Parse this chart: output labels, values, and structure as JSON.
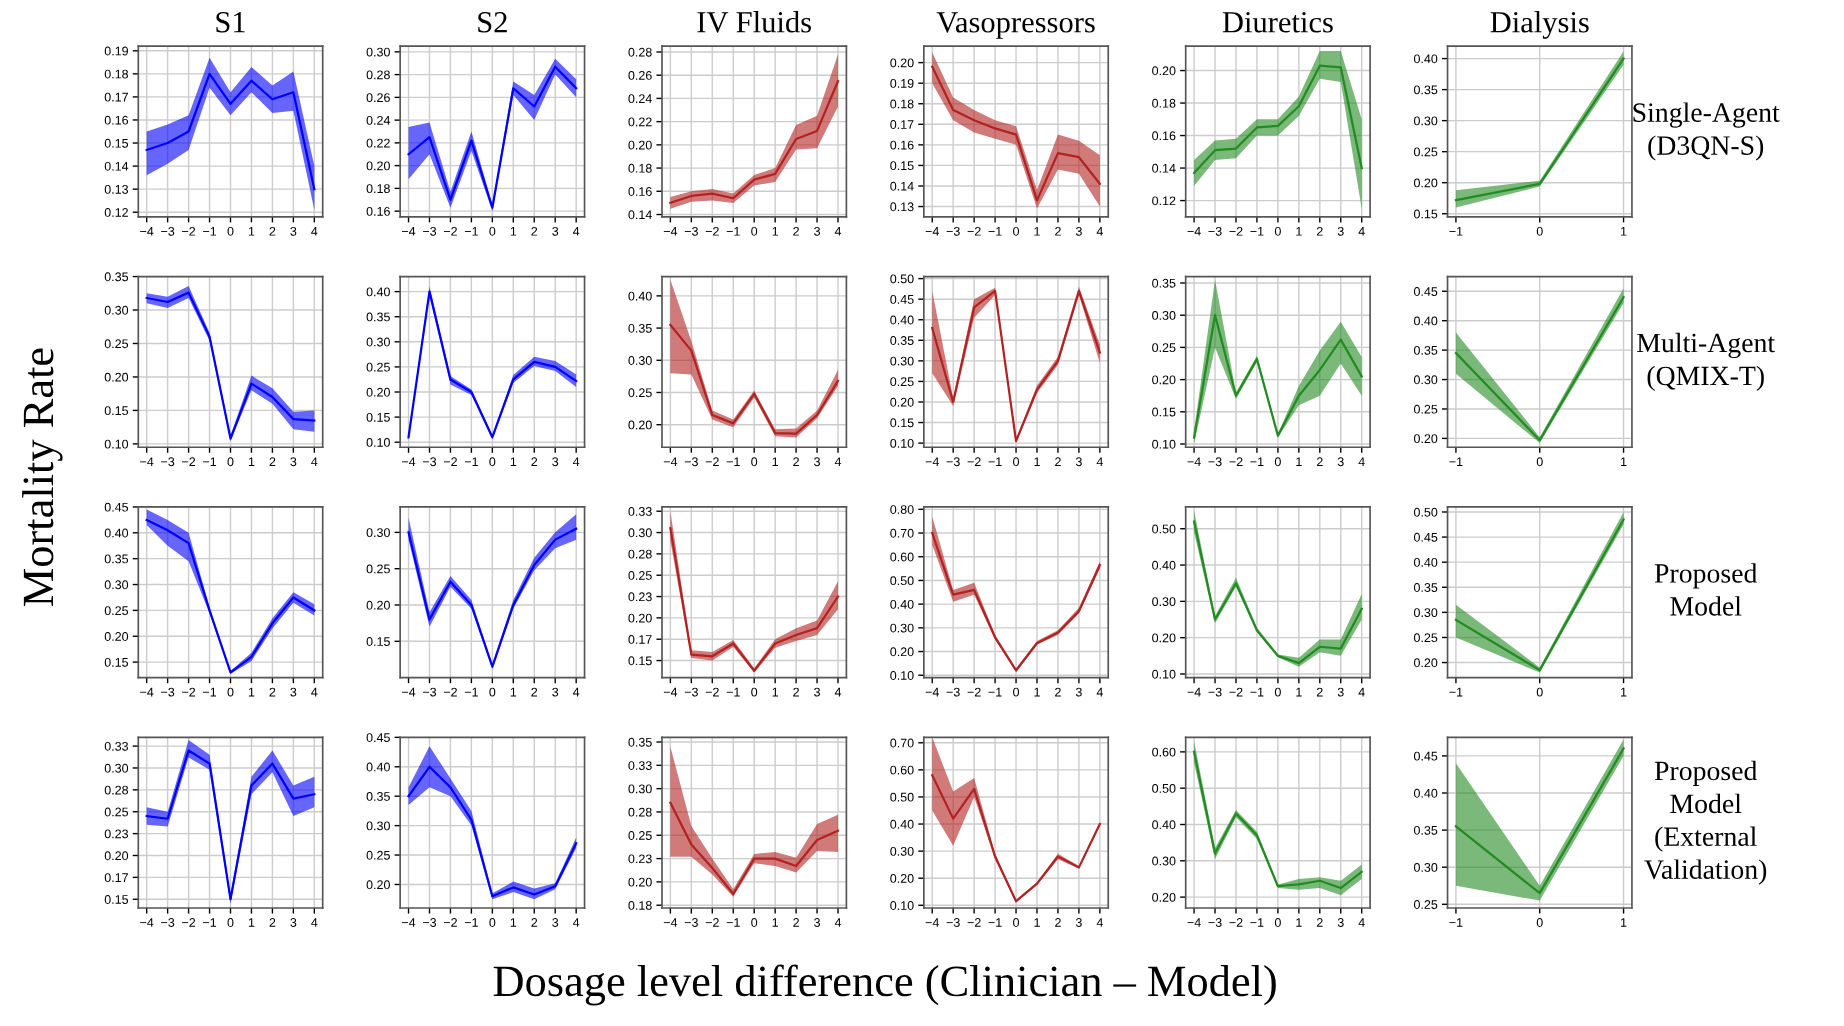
{
  "chart_data": [
    {
      "type": "line",
      "title": "S1",
      "ylabel": "Mortality Rate",
      "x": [
        -4,
        -3,
        -2,
        -1,
        0,
        1,
        2,
        3,
        4
      ],
      "xlim": [
        -4.4,
        4.4
      ],
      "xticks": [
        -4,
        -3,
        -2,
        -1,
        0,
        1,
        2,
        3,
        4
      ],
      "ylim": [
        0.118,
        0.192
      ],
      "yticks": [
        0.12,
        0.13,
        0.14,
        0.15,
        0.16,
        0.17,
        0.18,
        0.19
      ],
      "grid": true,
      "series": [
        {
          "color": "#0000ff",
          "values": [
            0.147,
            0.15,
            0.155,
            0.18,
            0.167,
            0.177,
            0.169,
            0.172,
            0.13
          ],
          "lower": [
            0.136,
            0.141,
            0.147,
            0.174,
            0.162,
            0.172,
            0.163,
            0.164,
            0.121
          ],
          "upper": [
            0.155,
            0.158,
            0.162,
            0.187,
            0.172,
            0.183,
            0.175,
            0.181,
            0.14
          ]
        }
      ]
    },
    {
      "type": "line",
      "title": "S2",
      "x": [
        -4,
        -3,
        -2,
        -1,
        0,
        1,
        2,
        3,
        4
      ],
      "xlim": [
        -4.4,
        4.4
      ],
      "xticks": [
        -4,
        -3,
        -2,
        -1,
        0,
        1,
        2,
        3,
        4
      ],
      "ylim": [
        0.155,
        0.305
      ],
      "yticks": [
        0.16,
        0.18,
        {
          "value": 0.2,
          "label": "0.20"
        },
        0.22,
        0.24,
        0.26,
        0.28,
        {
          "value": 0.3,
          "label": "0.30"
        }
      ],
      "grid": true,
      "series": [
        {
          "color": "#0000ff",
          "values": [
            0.21,
            0.225,
            0.17,
            0.222,
            0.163,
            0.268,
            0.252,
            0.287,
            0.268
          ],
          "lower": [
            0.188,
            0.21,
            0.163,
            0.213,
            0.16,
            0.262,
            0.24,
            0.28,
            0.26
          ],
          "upper": [
            0.234,
            0.238,
            0.177,
            0.23,
            0.166,
            0.274,
            0.262,
            0.294,
            0.276
          ]
        }
      ]
    },
    {
      "type": "line",
      "title": "IV Fluids",
      "x": [
        -4,
        -3,
        -2,
        -1,
        0,
        1,
        2,
        3,
        4
      ],
      "xlim": [
        -4.4,
        4.4
      ],
      "xticks": [
        -4,
        -3,
        -2,
        -1,
        0,
        1,
        2,
        3,
        4
      ],
      "ylim": [
        0.138,
        0.285
      ],
      "yticks": [
        0.14,
        0.16,
        0.18,
        {
          "value": 0.2,
          "label": "0.20"
        },
        0.22,
        0.24,
        0.26,
        0.28
      ],
      "grid": true,
      "series": [
        {
          "color": "#b22222",
          "values": [
            0.15,
            0.156,
            0.158,
            0.154,
            0.17,
            0.175,
            0.205,
            0.212,
            0.255
          ],
          "lower": [
            0.145,
            0.151,
            0.152,
            0.15,
            0.165,
            0.168,
            0.196,
            0.197,
            0.233
          ],
          "upper": [
            0.155,
            0.16,
            0.162,
            0.158,
            0.174,
            0.18,
            0.217,
            0.225,
            0.278
          ]
        }
      ]
    },
    {
      "type": "line",
      "title": "Vasopressors",
      "x": [
        -4,
        -3,
        -2,
        -1,
        0,
        1,
        2,
        3,
        4
      ],
      "xlim": [
        -4.4,
        4.4
      ],
      "xticks": [
        -4,
        -3,
        -2,
        -1,
        0,
        1,
        2,
        3,
        4
      ],
      "ylim": [
        0.125,
        0.208
      ],
      "yticks": [
        0.13,
        0.14,
        0.15,
        0.16,
        0.17,
        0.18,
        0.19,
        {
          "value": 0.2,
          "label": "0.20"
        }
      ],
      "grid": true,
      "series": [
        {
          "color": "#b22222",
          "values": [
            0.198,
            0.177,
            0.172,
            0.168,
            0.165,
            0.133,
            0.156,
            0.154,
            0.141
          ],
          "lower": [
            0.19,
            0.172,
            0.166,
            0.163,
            0.16,
            0.129,
            0.148,
            0.146,
            0.13
          ],
          "upper": [
            0.205,
            0.183,
            0.177,
            0.172,
            0.169,
            0.138,
            0.165,
            0.162,
            0.155
          ]
        }
      ]
    },
    {
      "type": "line",
      "title": "Diuretics",
      "x": [
        -4,
        -3,
        -2,
        -1,
        0,
        1,
        2,
        3,
        4
      ],
      "xlim": [
        -4.4,
        4.4
      ],
      "xticks": [
        -4,
        -3,
        -2,
        -1,
        0,
        1,
        2,
        3,
        4
      ],
      "ylim": [
        0.11,
        0.215
      ],
      "yticks": [
        0.12,
        0.14,
        0.16,
        0.18,
        {
          "value": 0.2,
          "label": "0.20"
        }
      ],
      "grid": true,
      "series": [
        {
          "color": "#228b22",
          "values": [
            0.137,
            0.151,
            0.152,
            0.165,
            0.166,
            0.178,
            0.203,
            0.202,
            0.14
          ],
          "lower": [
            0.129,
            0.145,
            0.146,
            0.16,
            0.16,
            0.172,
            0.195,
            0.193,
            0.115
          ],
          "upper": [
            0.145,
            0.157,
            0.158,
            0.17,
            0.17,
            0.184,
            0.212,
            0.212,
            0.17
          ]
        }
      ]
    },
    {
      "type": "line",
      "title": "Dialysis",
      "x": [
        -1,
        0,
        1
      ],
      "xlim": [
        -1.1,
        1.1
      ],
      "xticks": [
        -1,
        0,
        1
      ],
      "ylim": [
        0.145,
        0.42
      ],
      "yticks": [
        0.15,
        {
          "value": 0.2,
          "label": "0.20"
        },
        0.25,
        {
          "value": 0.3,
          "label": "0.30"
        },
        0.35,
        {
          "value": 0.4,
          "label": "0.40"
        }
      ],
      "grid": true,
      "annotations": [
        "Single-Agent\n(D3QN-S)"
      ],
      "series": [
        {
          "color": "#228b22",
          "values": [
            0.172,
            0.198,
            0.4
          ],
          "lower": [
            0.16,
            0.194,
            0.39
          ],
          "upper": [
            0.188,
            0.203,
            0.412
          ]
        }
      ]
    },
    {
      "type": "line",
      "x": [
        -4,
        -3,
        -2,
        -1,
        0,
        1,
        2,
        3,
        4
      ],
      "xlim": [
        -4.4,
        4.4
      ],
      "xticks": [
        -4,
        -3,
        -2,
        -1,
        0,
        1,
        2,
        3,
        4
      ],
      "ylim": [
        0.095,
        0.35
      ],
      "yticks": [
        {
          "value": 0.1,
          "label": "0.10"
        },
        0.15,
        {
          "value": 0.2,
          "label": "0.20"
        },
        0.25,
        {
          "value": 0.3,
          "label": "0.30"
        },
        0.35
      ],
      "grid": true,
      "series": [
        {
          "color": "#0000ff",
          "values": [
            0.318,
            0.312,
            0.326,
            0.26,
            0.108,
            0.19,
            0.17,
            0.137,
            0.135
          ],
          "lower": [
            0.31,
            0.303,
            0.318,
            0.254,
            0.104,
            0.18,
            0.16,
            0.122,
            0.118
          ],
          "upper": [
            0.325,
            0.32,
            0.336,
            0.266,
            0.112,
            0.202,
            0.183,
            0.148,
            0.15
          ]
        }
      ]
    },
    {
      "type": "line",
      "x": [
        -4,
        -3,
        -2,
        -1,
        0,
        1,
        2,
        3,
        4
      ],
      "xlim": [
        -4.4,
        4.4
      ],
      "xticks": [
        -4,
        -3,
        -2,
        -1,
        0,
        1,
        2,
        3,
        4
      ],
      "ylim": [
        0.09,
        0.43
      ],
      "yticks": [
        {
          "value": 0.1,
          "label": "0.10"
        },
        0.15,
        {
          "value": 0.2,
          "label": "0.20"
        },
        0.25,
        {
          "value": 0.3,
          "label": "0.30"
        },
        0.35,
        {
          "value": 0.4,
          "label": "0.40"
        }
      ],
      "grid": true,
      "series": [
        {
          "color": "#0000ff",
          "values": [
            0.11,
            0.4,
            0.225,
            0.2,
            0.11,
            0.225,
            0.26,
            0.25,
            0.222
          ],
          "lower": [
            0.105,
            0.392,
            0.215,
            0.194,
            0.106,
            0.218,
            0.252,
            0.242,
            0.21
          ],
          "upper": [
            0.116,
            0.41,
            0.232,
            0.205,
            0.114,
            0.234,
            0.27,
            0.262,
            0.235
          ]
        }
      ]
    },
    {
      "type": "line",
      "x": [
        -4,
        -3,
        -2,
        -1,
        0,
        1,
        2,
        3,
        4
      ],
      "xlim": [
        -4.4,
        4.4
      ],
      "xticks": [
        -4,
        -3,
        -2,
        -1,
        0,
        1,
        2,
        3,
        4
      ],
      "ylim": [
        0.165,
        0.43
      ],
      "yticks": [
        {
          "value": 0.2,
          "label": "0.20"
        },
        0.25,
        {
          "value": 0.3,
          "label": "0.30"
        },
        0.35,
        {
          "value": 0.4,
          "label": "0.40"
        }
      ],
      "grid": true,
      "series": [
        {
          "color": "#b22222",
          "values": [
            0.355,
            0.315,
            0.215,
            0.202,
            0.248,
            0.187,
            0.186,
            0.215,
            0.268
          ],
          "lower": [
            0.28,
            0.278,
            0.208,
            0.196,
            0.242,
            0.182,
            0.18,
            0.21,
            0.26
          ],
          "upper": [
            0.425,
            0.33,
            0.222,
            0.208,
            0.253,
            0.193,
            0.194,
            0.222,
            0.285
          ]
        }
      ]
    },
    {
      "type": "line",
      "x": [
        -4,
        -3,
        -2,
        -1,
        0,
        1,
        2,
        3,
        4
      ],
      "xlim": [
        -4.4,
        4.4
      ],
      "xticks": [
        -4,
        -3,
        -2,
        -1,
        0,
        1,
        2,
        3,
        4
      ],
      "ylim": [
        0.09,
        0.505
      ],
      "yticks": [
        {
          "value": 0.1,
          "label": "0.10"
        },
        0.15,
        {
          "value": 0.2,
          "label": "0.20"
        },
        0.25,
        {
          "value": 0.3,
          "label": "0.30"
        },
        0.35,
        {
          "value": 0.4,
          "label": "0.40"
        },
        0.45,
        {
          "value": 0.5,
          "label": "0.50"
        }
      ],
      "grid": true,
      "series": [
        {
          "color": "#b22222",
          "values": [
            0.38,
            0.2,
            0.43,
            0.47,
            0.105,
            0.23,
            0.3,
            0.47,
            0.32
          ],
          "lower": [
            0.27,
            0.19,
            0.405,
            0.46,
            0.1,
            0.222,
            0.29,
            0.46,
            0.295
          ],
          "upper": [
            0.47,
            0.21,
            0.45,
            0.478,
            0.11,
            0.24,
            0.31,
            0.48,
            0.34
          ]
        }
      ]
    },
    {
      "type": "line",
      "x": [
        -4,
        -3,
        -2,
        -1,
        0,
        1,
        2,
        3,
        4
      ],
      "xlim": [
        -4.4,
        4.4
      ],
      "xticks": [
        -4,
        -3,
        -2,
        -1,
        0,
        1,
        2,
        3,
        4
      ],
      "ylim": [
        0.095,
        0.36
      ],
      "yticks": [
        {
          "value": 0.1,
          "label": "0.10"
        },
        0.15,
        {
          "value": 0.2,
          "label": "0.20"
        },
        0.25,
        {
          "value": 0.3,
          "label": "0.30"
        },
        0.35
      ],
      "grid": true,
      "series": [
        {
          "color": "#228b22",
          "values": [
            0.11,
            0.3,
            0.175,
            0.232,
            0.113,
            0.175,
            0.215,
            0.262,
            0.205
          ],
          "lower": [
            0.1,
            0.25,
            0.17,
            0.227,
            0.11,
            0.16,
            0.175,
            0.225,
            0.175
          ],
          "upper": [
            0.12,
            0.355,
            0.18,
            0.237,
            0.116,
            0.19,
            0.245,
            0.29,
            0.235
          ]
        }
      ]
    },
    {
      "type": "line",
      "x": [
        -1,
        0,
        1
      ],
      "xlim": [
        -1.1,
        1.1
      ],
      "xticks": [
        -1,
        0,
        1
      ],
      "ylim": [
        0.185,
        0.475
      ],
      "yticks": [
        {
          "value": 0.2,
          "label": "0.20"
        },
        0.25,
        {
          "value": 0.3,
          "label": "0.30"
        },
        0.35,
        {
          "value": 0.4,
          "label": "0.40"
        },
        0.45
      ],
      "grid": true,
      "annotations": [
        "Multi-Agent\n(QMIX-T)"
      ],
      "series": [
        {
          "color": "#228b22",
          "values": [
            0.345,
            0.197,
            0.44
          ],
          "lower": [
            0.31,
            0.192,
            0.43
          ],
          "upper": [
            0.38,
            0.202,
            0.455
          ]
        }
      ]
    },
    {
      "type": "line",
      "x": [
        -4,
        -3,
        -2,
        -1,
        0,
        1,
        2,
        3,
        4
      ],
      "xlim": [
        -4.4,
        4.4
      ],
      "xticks": [
        -4,
        -3,
        -2,
        -1,
        0,
        1,
        2,
        3,
        4
      ],
      "ylim": [
        0.12,
        0.45
      ],
      "yticks": [
        0.15,
        {
          "value": 0.2,
          "label": "0.20"
        },
        0.25,
        {
          "value": 0.3,
          "label": "0.30"
        },
        0.35,
        {
          "value": 0.4,
          "label": "0.40"
        },
        0.45
      ],
      "grid": true,
      "series": [
        {
          "color": "#0000ff",
          "values": [
            0.425,
            0.405,
            0.38,
            0.25,
            0.13,
            0.16,
            0.225,
            0.275,
            0.25
          ],
          "lower": [
            0.415,
            0.375,
            0.345,
            0.244,
            0.127,
            0.152,
            0.215,
            0.265,
            0.24
          ],
          "upper": [
            0.445,
            0.425,
            0.4,
            0.256,
            0.133,
            0.168,
            0.235,
            0.285,
            0.262
          ]
        }
      ]
    },
    {
      "type": "line",
      "x": [
        -4,
        -3,
        -2,
        -1,
        0,
        1,
        2,
        3,
        4
      ],
      "xlim": [
        -4.4,
        4.4
      ],
      "xticks": [
        -4,
        -3,
        -2,
        -1,
        0,
        1,
        2,
        3,
        4
      ],
      "ylim": [
        0.1,
        0.335
      ],
      "yticks": [
        0.15,
        {
          "value": 0.2,
          "label": "0.20"
        },
        0.25,
        {
          "value": 0.3,
          "label": "0.30"
        }
      ],
      "grid": true,
      "series": [
        {
          "color": "#0000ff",
          "values": [
            0.3,
            0.18,
            0.232,
            0.2,
            0.115,
            0.2,
            0.255,
            0.29,
            0.305
          ],
          "lower": [
            0.29,
            0.17,
            0.225,
            0.195,
            0.112,
            0.195,
            0.248,
            0.278,
            0.29
          ],
          "upper": [
            0.32,
            0.19,
            0.24,
            0.207,
            0.118,
            0.207,
            0.265,
            0.3,
            0.325
          ]
        }
      ]
    },
    {
      "type": "line",
      "x": [
        -4,
        -3,
        -2,
        -1,
        0,
        1,
        2,
        3,
        4
      ],
      "xlim": [
        -4.4,
        4.4
      ],
      "xticks": [
        -4,
        -3,
        -2,
        -1,
        0,
        1,
        2,
        3,
        4
      ],
      "ylim": [
        0.13,
        0.33
      ],
      "yticks": [
        0.15,
        {
          "value": 0.175,
          "label": "0.17"
        },
        {
          "value": 0.2,
          "label": "0.20"
        },
        {
          "value": 0.225,
          "label": "0.23"
        },
        0.25,
        {
          "value": 0.275,
          "label": "0.28"
        },
        {
          "value": 0.3,
          "label": "0.30"
        },
        {
          "value": 0.325,
          "label": "0.33"
        }
      ],
      "grid": true,
      "series": [
        {
          "color": "#b22222",
          "values": [
            0.305,
            0.157,
            0.155,
            0.17,
            0.138,
            0.17,
            0.18,
            0.188,
            0.225
          ],
          "lower": [
            0.29,
            0.153,
            0.15,
            0.166,
            0.136,
            0.165,
            0.173,
            0.18,
            0.21
          ],
          "upper": [
            0.325,
            0.162,
            0.16,
            0.174,
            0.141,
            0.175,
            0.188,
            0.197,
            0.243
          ]
        }
      ]
    },
    {
      "type": "line",
      "x": [
        -4,
        -3,
        -2,
        -1,
        0,
        1,
        2,
        3,
        4
      ],
      "xlim": [
        -4.4,
        4.4
      ],
      "xticks": [
        -4,
        -3,
        -2,
        -1,
        0,
        1,
        2,
        3,
        4
      ],
      "ylim": [
        0.09,
        0.81
      ],
      "yticks": [
        {
          "value": 0.1,
          "label": "0.10"
        },
        {
          "value": 0.2,
          "label": "0.20"
        },
        {
          "value": 0.3,
          "label": "0.30"
        },
        {
          "value": 0.4,
          "label": "0.40"
        },
        {
          "value": 0.5,
          "label": "0.50"
        },
        {
          "value": 0.6,
          "label": "0.60"
        },
        {
          "value": 0.7,
          "label": "0.70"
        },
        {
          "value": 0.8,
          "label": "0.80"
        }
      ],
      "grid": true,
      "series": [
        {
          "color": "#b22222",
          "values": [
            0.7,
            0.44,
            0.46,
            0.26,
            0.12,
            0.235,
            0.28,
            0.37,
            0.565
          ],
          "lower": [
            0.65,
            0.41,
            0.44,
            0.25,
            0.12,
            0.23,
            0.27,
            0.36,
            0.55
          ],
          "upper": [
            0.77,
            0.46,
            0.49,
            0.27,
            0.13,
            0.245,
            0.29,
            0.385,
            0.58
          ]
        }
      ]
    },
    {
      "type": "line",
      "x": [
        -4,
        -3,
        -2,
        -1,
        0,
        1,
        2,
        3,
        4
      ],
      "xlim": [
        -4.4,
        4.4
      ],
      "xticks": [
        -4,
        -3,
        -2,
        -1,
        0,
        1,
        2,
        3,
        4
      ],
      "ylim": [
        0.09,
        0.56
      ],
      "yticks": [
        {
          "value": 0.1,
          "label": "0.10"
        },
        {
          "value": 0.2,
          "label": "0.20"
        },
        {
          "value": 0.3,
          "label": "0.30"
        },
        {
          "value": 0.4,
          "label": "0.40"
        },
        {
          "value": 0.5,
          "label": "0.50"
        }
      ],
      "grid": true,
      "series": [
        {
          "color": "#228b22",
          "values": [
            0.52,
            0.25,
            0.35,
            0.22,
            0.15,
            0.13,
            0.175,
            0.17,
            0.28
          ],
          "lower": [
            0.49,
            0.24,
            0.34,
            0.215,
            0.146,
            0.12,
            0.16,
            0.15,
            0.25
          ],
          "upper": [
            0.55,
            0.26,
            0.365,
            0.228,
            0.154,
            0.145,
            0.195,
            0.195,
            0.32
          ]
        }
      ]
    },
    {
      "type": "line",
      "x": [
        -1,
        0,
        1
      ],
      "xlim": [
        -1.1,
        1.1
      ],
      "xticks": [
        -1,
        0,
        1
      ],
      "ylim": [
        0.17,
        0.51
      ],
      "yticks": [
        {
          "value": 0.2,
          "label": "0.20"
        },
        0.25,
        {
          "value": 0.3,
          "label": "0.30"
        },
        0.35,
        {
          "value": 0.4,
          "label": "0.40"
        },
        0.45,
        {
          "value": 0.5,
          "label": "0.50"
        }
      ],
      "grid": true,
      "annotations": [
        "Proposed\nModel"
      ],
      "series": [
        {
          "color": "#228b22",
          "values": [
            0.285,
            0.185,
            0.485
          ],
          "lower": [
            0.25,
            0.18,
            0.475
          ],
          "upper": [
            0.315,
            0.19,
            0.5
          ]
        }
      ]
    },
    {
      "type": "line",
      "x": [
        -4,
        -3,
        -2,
        -1,
        0,
        1,
        2,
        3,
        4
      ],
      "xlim": [
        -4.4,
        4.4
      ],
      "xticks": [
        -4,
        -3,
        -2,
        -1,
        0,
        1,
        2,
        3,
        4
      ],
      "ylim": [
        0.14,
        0.335
      ],
      "yticks": [
        0.15,
        {
          "value": 0.175,
          "label": "0.17"
        },
        {
          "value": 0.2,
          "label": "0.20"
        },
        {
          "value": 0.225,
          "label": "0.23"
        },
        0.25,
        {
          "value": 0.275,
          "label": "0.28"
        },
        {
          "value": 0.3,
          "label": "0.30"
        },
        {
          "value": 0.325,
          "label": "0.33"
        }
      ],
      "grid": true,
      "series": [
        {
          "color": "#0000ff",
          "values": [
            0.245,
            0.242,
            0.32,
            0.305,
            0.15,
            0.28,
            0.305,
            0.265,
            0.27
          ],
          "lower": [
            0.235,
            0.233,
            0.312,
            0.298,
            0.145,
            0.27,
            0.295,
            0.245,
            0.255
          ],
          "upper": [
            0.255,
            0.25,
            0.332,
            0.315,
            0.155,
            0.29,
            0.32,
            0.28,
            0.29
          ]
        }
      ]
    },
    {
      "type": "line",
      "x": [
        -4,
        -3,
        -2,
        -1,
        0,
        1,
        2,
        3,
        4
      ],
      "xlim": [
        -4.4,
        4.4
      ],
      "xticks": [
        -4,
        -3,
        -2,
        -1,
        0,
        1,
        2,
        3,
        4
      ],
      "ylim": [
        0.16,
        0.45
      ],
      "yticks": [
        {
          "value": 0.2,
          "label": "0.20"
        },
        0.25,
        {
          "value": 0.3,
          "label": "0.30"
        },
        0.35,
        {
          "value": 0.4,
          "label": "0.40"
        },
        0.45
      ],
      "grid": true,
      "series": [
        {
          "color": "#0000ff",
          "values": [
            0.35,
            0.4,
            0.365,
            0.31,
            0.18,
            0.195,
            0.183,
            0.197,
            0.27
          ],
          "lower": [
            0.335,
            0.365,
            0.35,
            0.3,
            0.175,
            0.187,
            0.175,
            0.192,
            0.262
          ],
          "upper": [
            0.365,
            0.435,
            0.38,
            0.325,
            0.185,
            0.205,
            0.193,
            0.202,
            0.28
          ]
        }
      ]
    },
    {
      "type": "line",
      "x": [
        -4,
        -3,
        -2,
        -1,
        0,
        1,
        2,
        3,
        4
      ],
      "xlim": [
        -4.4,
        4.4
      ],
      "xticks": [
        -4,
        -3,
        -2,
        -1,
        0,
        1,
        2,
        3,
        4
      ],
      "ylim": [
        0.172,
        0.355
      ],
      "yticks": [
        {
          "value": 0.175,
          "label": "0.18"
        },
        {
          "value": 0.2,
          "label": "0.20"
        },
        {
          "value": 0.225,
          "label": "0.23"
        },
        0.25,
        {
          "value": 0.275,
          "label": "0.28"
        },
        {
          "value": 0.3,
          "label": "0.30"
        },
        {
          "value": 0.325,
          "label": "0.33"
        },
        0.35
      ],
      "grid": true,
      "series": [
        {
          "color": "#b22222",
          "values": [
            0.285,
            0.24,
            0.215,
            0.187,
            0.225,
            0.225,
            0.217,
            0.245,
            0.255
          ],
          "lower": [
            0.227,
            0.227,
            0.208,
            0.184,
            0.22,
            0.217,
            0.21,
            0.233,
            0.232
          ],
          "upper": [
            0.345,
            0.26,
            0.225,
            0.192,
            0.23,
            0.232,
            0.226,
            0.262,
            0.272
          ]
        }
      ]
    },
    {
      "type": "line",
      "x": [
        -4,
        -3,
        -2,
        -1,
        0,
        1,
        2,
        3,
        4
      ],
      "xlim": [
        -4.4,
        4.4
      ],
      "xticks": [
        -4,
        -3,
        -2,
        -1,
        0,
        1,
        2,
        3,
        4
      ],
      "ylim": [
        0.09,
        0.72
      ],
      "yticks": [
        {
          "value": 0.1,
          "label": "0.10"
        },
        {
          "value": 0.2,
          "label": "0.20"
        },
        {
          "value": 0.3,
          "label": "0.30"
        },
        {
          "value": 0.4,
          "label": "0.40"
        },
        {
          "value": 0.5,
          "label": "0.50"
        },
        {
          "value": 0.6,
          "label": "0.60"
        },
        {
          "value": 0.7,
          "label": "0.70"
        }
      ],
      "grid": true,
      "series": [
        {
          "color": "#b22222",
          "values": [
            0.58,
            0.42,
            0.53,
            0.28,
            0.115,
            0.18,
            0.28,
            0.24,
            0.4
          ],
          "lower": [
            0.45,
            0.32,
            0.5,
            0.27,
            0.11,
            0.175,
            0.27,
            0.235,
            0.395
          ],
          "upper": [
            0.72,
            0.52,
            0.57,
            0.29,
            0.12,
            0.185,
            0.29,
            0.245,
            0.405
          ]
        }
      ]
    },
    {
      "type": "line",
      "x": [
        -4,
        -3,
        -2,
        -1,
        0,
        1,
        2,
        3,
        4
      ],
      "xlim": [
        -4.4,
        4.4
      ],
      "xticks": [
        -4,
        -3,
        -2,
        -1,
        0,
        1,
        2,
        3,
        4
      ],
      "ylim": [
        0.17,
        0.64
      ],
      "yticks": [
        {
          "value": 0.2,
          "label": "0.20"
        },
        {
          "value": 0.3,
          "label": "0.30"
        },
        {
          "value": 0.4,
          "label": "0.40"
        },
        {
          "value": 0.5,
          "label": "0.50"
        },
        {
          "value": 0.6,
          "label": "0.60"
        }
      ],
      "grid": true,
      "series": [
        {
          "color": "#228b22",
          "values": [
            0.6,
            0.32,
            0.43,
            0.37,
            0.23,
            0.235,
            0.245,
            0.225,
            0.27
          ],
          "lower": [
            0.57,
            0.305,
            0.42,
            0.36,
            0.225,
            0.22,
            0.225,
            0.205,
            0.25
          ],
          "upper": [
            0.63,
            0.335,
            0.44,
            0.38,
            0.235,
            0.25,
            0.255,
            0.245,
            0.29
          ]
        }
      ]
    },
    {
      "type": "line",
      "x": [
        -1,
        0,
        1
      ],
      "xlim": [
        -1.1,
        1.1
      ],
      "xticks": [
        -1,
        0,
        1
      ],
      "ylim": [
        0.245,
        0.475
      ],
      "yticks": [
        0.25,
        {
          "value": 0.3,
          "label": "0.30"
        },
        0.35,
        {
          "value": 0.4,
          "label": "0.40"
        },
        0.45
      ],
      "grid": true,
      "xlabel": "Dosage level difference (Clinician – Model)",
      "annotations": [
        "Proposed\nModel\n(External\nValidation)"
      ],
      "series": [
        {
          "color": "#228b22",
          "values": [
            0.355,
            0.265,
            0.46
          ],
          "lower": [
            0.275,
            0.255,
            0.45
          ],
          "upper": [
            0.44,
            0.275,
            0.472
          ]
        }
      ]
    }
  ]
}
